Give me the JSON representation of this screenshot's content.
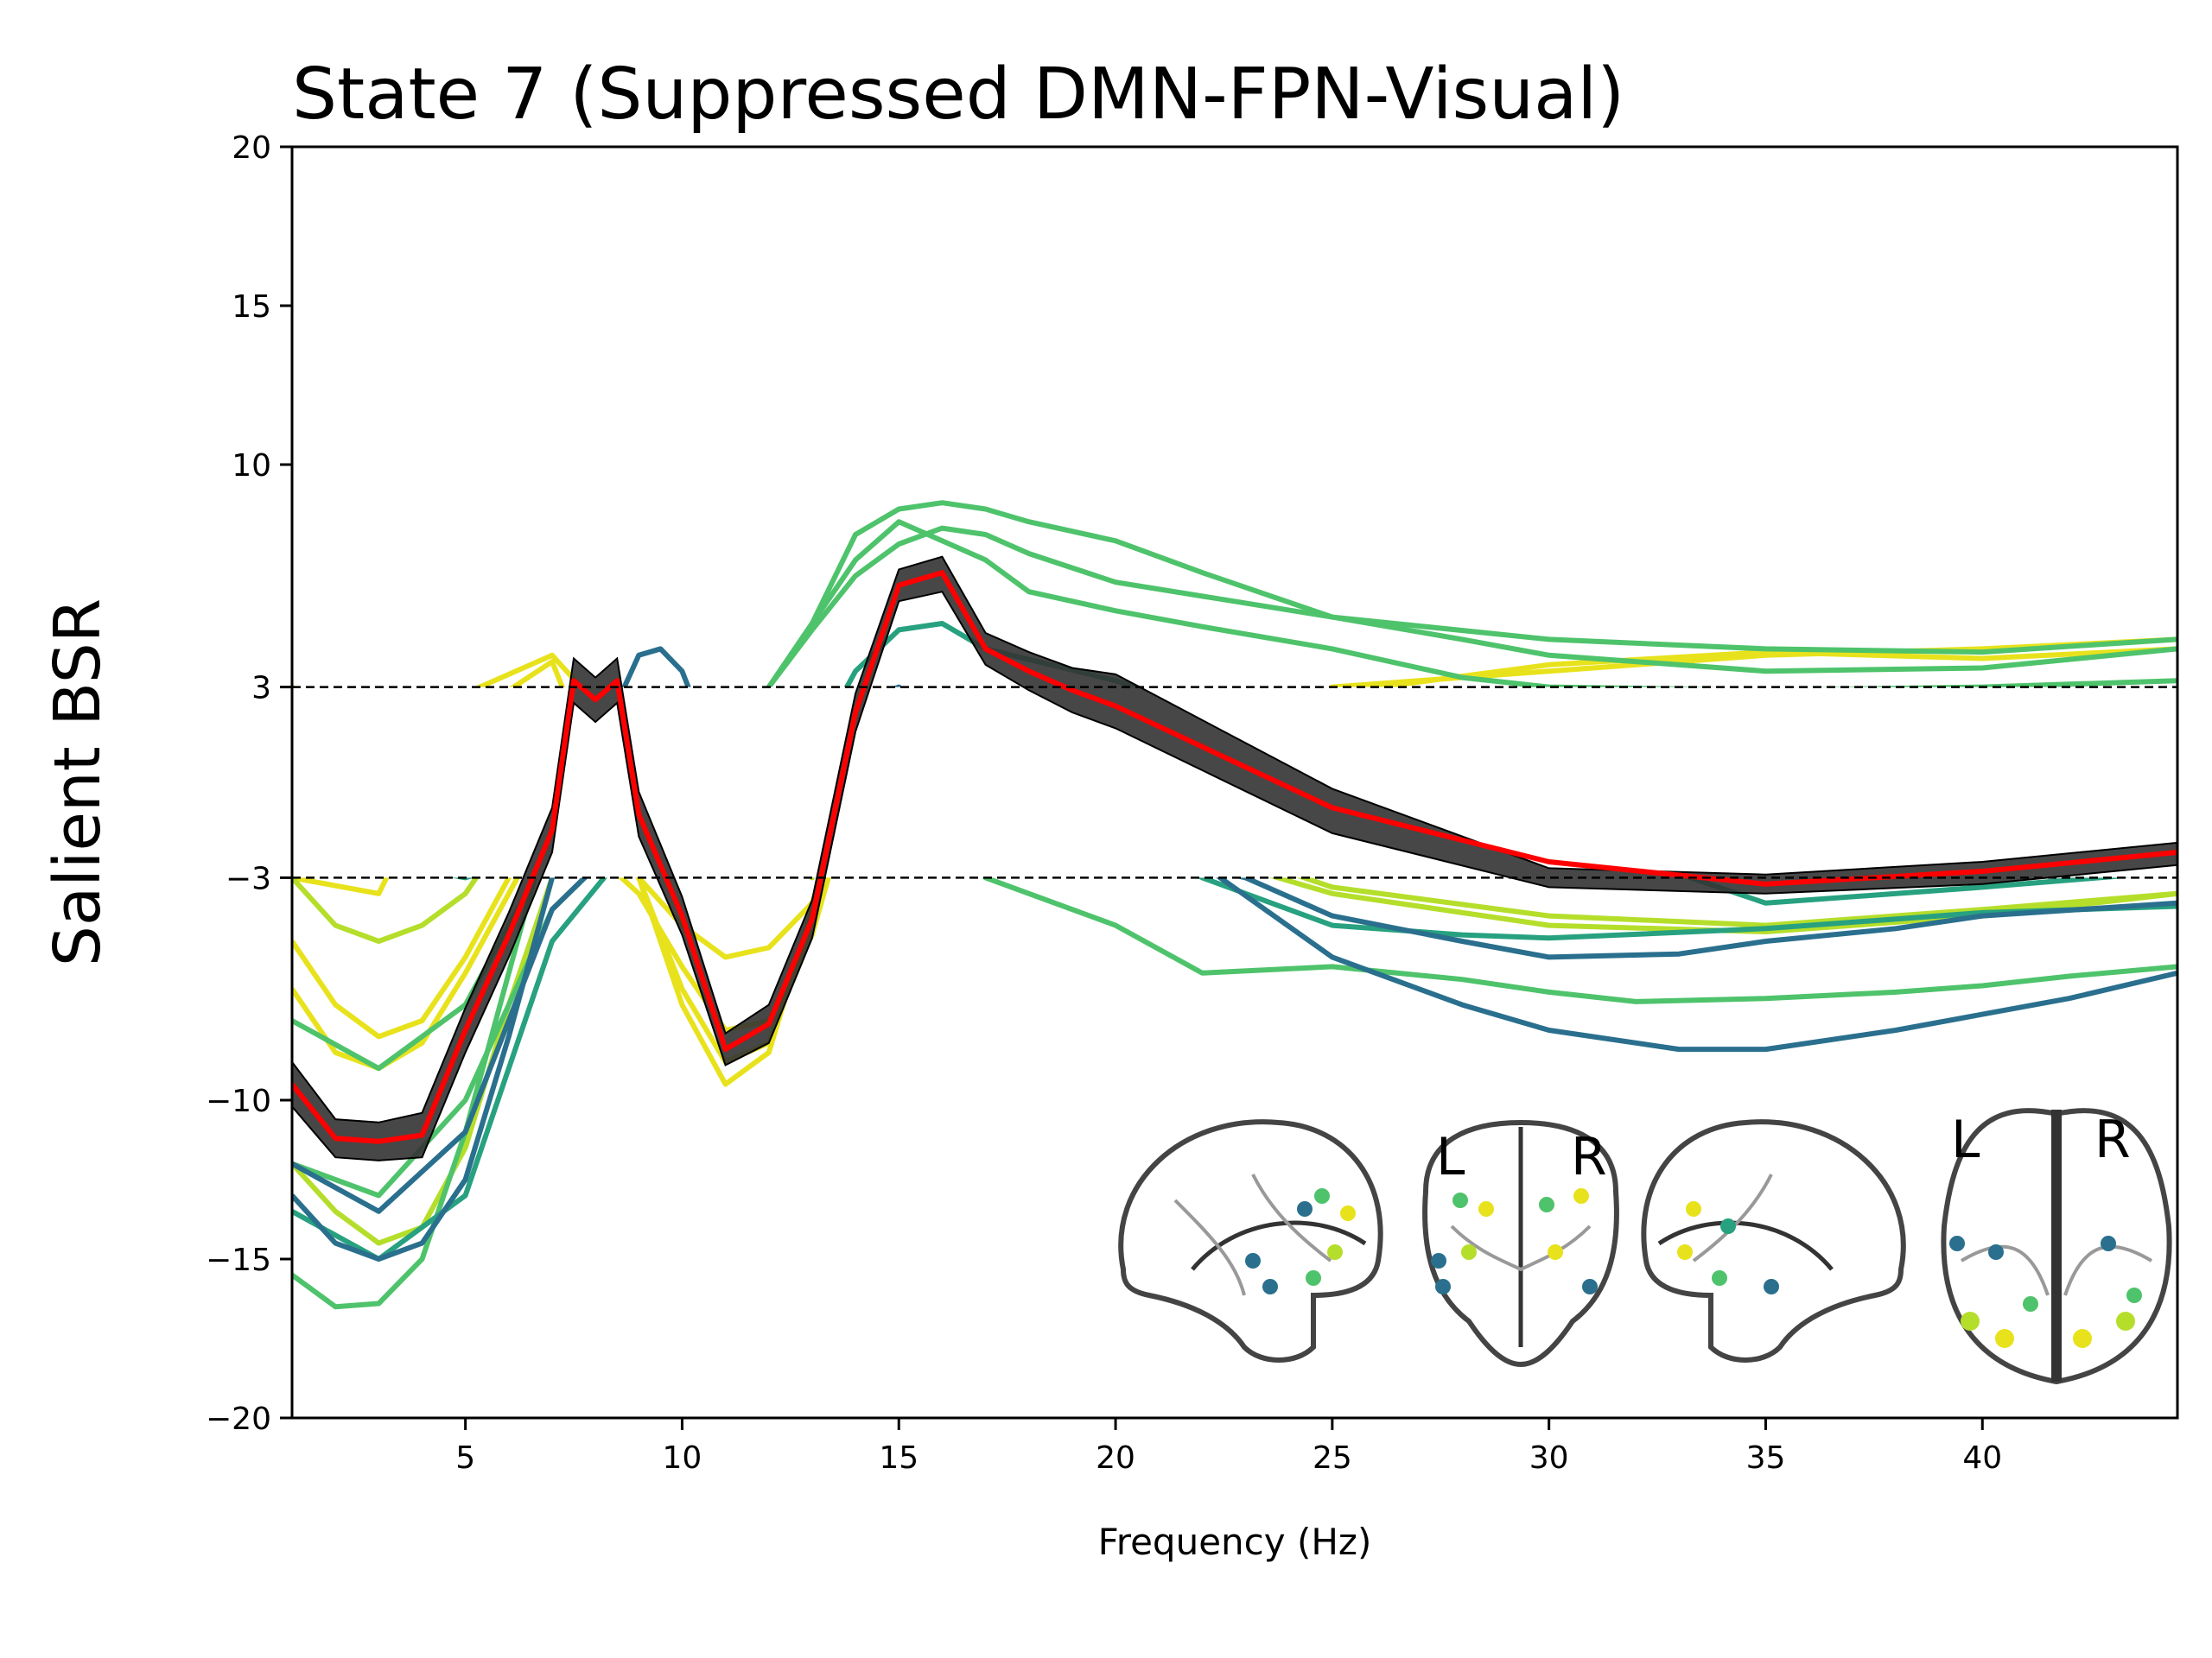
{
  "chart_data": {
    "type": "line",
    "title": "State 7 (Suppressed DMN-FPN-Visual)",
    "xlabel": "Frequency (Hz)",
    "ylabel": "Salient BSR",
    "xlim": [
      1,
      44.5
    ],
    "ylim": [
      -20,
      20
    ],
    "xticks": [
      5,
      10,
      15,
      20,
      25,
      30,
      35,
      40
    ],
    "yticks": [
      -20,
      -15,
      -10,
      -3,
      3,
      10,
      15,
      20
    ],
    "ytick_labels": [
      "−20",
      "−15",
      "−10",
      "−3",
      "3",
      "10",
      "15",
      "20"
    ],
    "threshold": [
      -3,
      3
    ],
    "grid": false,
    "legend": "none",
    "brain_inset_labels": [
      "L",
      "R",
      "L",
      "R"
    ],
    "colors": {
      "mean": "#ff0000",
      "ci": "#333333",
      "yellow": "#e8e21c",
      "yellowgreen": "#b5de2b",
      "green": "#4ec36b",
      "teal": "#27a17f",
      "blue": "#2a6f8e"
    },
    "mean_series": {
      "x": [
        1,
        2,
        3,
        4,
        5,
        6,
        7,
        7.5,
        8,
        8.5,
        9,
        10,
        11,
        12,
        13,
        14,
        15,
        16,
        17,
        18,
        19,
        20,
        25,
        30,
        35,
        40,
        44.5
      ],
      "y": [
        -9.5,
        -11.2,
        -11.3,
        -11.1,
        -7.8,
        -4.8,
        -1.5,
        3.2,
        2.6,
        3.2,
        -1,
        -4.2,
        -8.4,
        -7.6,
        -4.3,
        2.2,
        6.2,
        6.6,
        4.2,
        3.5,
        2.9,
        2.4,
        -0.8,
        -2.5,
        -3.2,
        -2.8,
        -2.2
      ],
      "ci_lower": [
        -10.2,
        -11.8,
        -11.9,
        -11.8,
        -8.5,
        -5.5,
        -2.2,
        2.5,
        1.9,
        2.5,
        -1.7,
        -4.8,
        -8.9,
        -8.2,
        -4.9,
        1.6,
        5.7,
        6.0,
        3.7,
        2.9,
        2.2,
        1.7,
        -1.6,
        -3.3,
        -3.5,
        -3.2,
        -2.6
      ],
      "ci_upper": [
        -8.8,
        -10.6,
        -10.7,
        -10.4,
        -7.1,
        -4.1,
        -0.8,
        3.9,
        3.3,
        3.9,
        -0.3,
        -3.6,
        -7.9,
        -7.0,
        -3.7,
        2.8,
        6.7,
        7.1,
        4.7,
        4.1,
        3.6,
        3.4,
        -0.2,
        -2.7,
        -2.9,
        -2.5,
        -1.9
      ]
    },
    "series": [
      {
        "color_key": "yellow",
        "x": [
          1,
          3,
          5,
          7,
          8,
          9,
          10,
          11,
          12,
          13,
          14,
          16,
          18,
          20,
          25,
          30,
          35,
          40,
          44.5
        ],
        "y": [
          3,
          1,
          2.8,
          4,
          2.5,
          -3,
          -7,
          -9.5,
          -8.5,
          -4,
          1,
          -1,
          -1.5,
          -1.6,
          3,
          3.5,
          4,
          4.2,
          4.5
        ]
      },
      {
        "color_key": "yellow",
        "x": [
          1,
          3,
          5,
          7,
          9,
          10,
          11,
          12,
          13,
          14,
          16,
          20,
          25,
          30,
          35,
          40,
          44.5
        ],
        "y": [
          -3,
          -3.5,
          2,
          3.8,
          -3,
          -6.5,
          -8.8,
          -8.2,
          -4.5,
          0.5,
          -0.5,
          -1,
          2.8,
          3.7,
          4.1,
          3.9,
          4.2
        ]
      },
      {
        "color_key": "yellow",
        "x": [
          1,
          2,
          3,
          4,
          5,
          6,
          7,
          9,
          10,
          11,
          12,
          13,
          14,
          20,
          30,
          40,
          44.5
        ],
        "y": [
          -6.5,
          -8.5,
          -9,
          -8.2,
          -6,
          -3.5,
          -1,
          -3.5,
          -5.8,
          -7.8,
          -7.5,
          -4.8,
          0,
          -1,
          -1.5,
          -2,
          -2.2
        ]
      },
      {
        "color_key": "yellow",
        "x": [
          1,
          2,
          3,
          4,
          5,
          6,
          7,
          9,
          10,
          11,
          12,
          13,
          14,
          20,
          30,
          40,
          44.5
        ],
        "y": [
          -5,
          -7,
          -8,
          -7.5,
          -5.5,
          -3,
          -0.5,
          -3,
          -4.5,
          -5.5,
          -5.2,
          -3.8,
          0,
          -0.5,
          -1,
          -1.5,
          -1.8
        ]
      },
      {
        "color_key": "yellowgreen",
        "x": [
          1,
          2,
          3,
          4,
          5,
          6,
          7,
          10,
          12,
          13,
          14,
          20,
          25,
          30,
          35,
          40,
          44.5
        ],
        "y": [
          -12,
          -13.5,
          -14.5,
          -14,
          -11.5,
          -7,
          -3,
          0,
          -2,
          -3,
          0,
          -1,
          -3.3,
          -4.2,
          -4.5,
          -4,
          -3.5
        ]
      },
      {
        "color_key": "yellowgreen",
        "x": [
          1,
          2,
          3,
          4,
          5,
          6,
          7,
          10,
          13,
          16,
          20,
          25,
          30,
          35,
          40,
          44.5
        ],
        "y": [
          -3,
          -4.5,
          -5,
          -4.5,
          -3.5,
          -1.5,
          0,
          0,
          -1,
          -0.8,
          -1.5,
          -3.5,
          -4.5,
          -4.7,
          -4.2,
          -3.5
        ]
      },
      {
        "color_key": "green",
        "x": [
          1,
          2,
          3,
          4,
          5,
          6,
          7,
          10,
          12,
          13,
          14,
          15,
          16,
          17,
          18,
          20,
          22,
          25,
          28,
          30,
          35,
          40,
          44.5
        ],
        "y": [
          -15.5,
          -16.5,
          -16.4,
          -15,
          -11,
          -6,
          -1,
          0,
          3,
          5,
          7,
          8.2,
          7.6,
          7,
          6,
          5.4,
          4.9,
          4.2,
          3.3,
          3,
          2.9,
          3,
          3.2
        ]
      },
      {
        "color_key": "green",
        "x": [
          1,
          3,
          5,
          7,
          10,
          12,
          13,
          14,
          15,
          16,
          17,
          18,
          20,
          22,
          25,
          28,
          30,
          35,
          40,
          44.5
        ],
        "y": [
          -7.5,
          -9,
          -7,
          -2,
          0,
          3,
          5,
          7.8,
          8.6,
          8.8,
          8.6,
          8.2,
          7.6,
          6.6,
          5.2,
          4.5,
          4,
          3.5,
          3.6,
          4.2
        ]
      },
      {
        "color_key": "green",
        "x": [
          1,
          3,
          5,
          7,
          10,
          12,
          13,
          14,
          15,
          16,
          17,
          18,
          20,
          25,
          30,
          35,
          40,
          44.5
        ],
        "y": [
          -12,
          -13,
          -10,
          -4,
          0,
          3,
          4.8,
          6.5,
          7.5,
          8,
          7.8,
          7.2,
          6.3,
          5.2,
          4.5,
          4.2,
          4.1,
          4.5
        ]
      },
      {
        "color_key": "green",
        "x": [
          1,
          5,
          10,
          15,
          16,
          17,
          20,
          22,
          25,
          28,
          30,
          32,
          35,
          38,
          40,
          42,
          44.5
        ],
        "y": [
          -1,
          -2,
          -1.5,
          -0.5,
          -1.5,
          -3,
          -4.5,
          -6,
          -5.8,
          -6.2,
          -6.6,
          -6.9,
          -6.8,
          -6.6,
          -6.4,
          -6.1,
          -5.8
        ]
      },
      {
        "color_key": "teal",
        "x": [
          1,
          3,
          5,
          7,
          10,
          13,
          14,
          15,
          16,
          17,
          20,
          25,
          30,
          35,
          40,
          44.5
        ],
        "y": [
          -13.5,
          -15,
          -13,
          -5,
          0,
          1,
          3.5,
          4.8,
          5,
          4.2,
          3.2,
          1,
          -1.5,
          -3.8,
          -3.3,
          -2.8
        ]
      },
      {
        "color_key": "teal",
        "x": [
          1,
          5,
          10,
          15,
          20,
          22,
          25,
          28,
          30,
          35,
          40,
          44.5
        ],
        "y": [
          -2,
          -3,
          -1,
          -0.5,
          -1.5,
          -3,
          -4.5,
          -4.8,
          -4.9,
          -4.6,
          -4.1,
          -3.9
        ]
      },
      {
        "color_key": "blue",
        "x": [
          1,
          2,
          3,
          4,
          5,
          6,
          7,
          8,
          9,
          9.5,
          10,
          11,
          12,
          14,
          15,
          16,
          20,
          22,
          25,
          28,
          30,
          33,
          35,
          38,
          40,
          42,
          44.5
        ],
        "y": [
          -13,
          -14.5,
          -15,
          -14.5,
          -12.5,
          -8,
          -3,
          1,
          4,
          4.2,
          3.5,
          0,
          -1,
          2.5,
          3,
          1.5,
          -1,
          -2.6,
          -5.5,
          -7,
          -7.8,
          -8.4,
          -8.4,
          -7.8,
          -7.3,
          -6.8,
          -6
        ]
      },
      {
        "color_key": "blue",
        "x": [
          1,
          3,
          5,
          7,
          10,
          15,
          20,
          23,
          25,
          28,
          30,
          33,
          35,
          38,
          40,
          44.5
        ],
        "y": [
          -12,
          -13.5,
          -11,
          -4,
          0,
          -1,
          -2,
          -3,
          -4.2,
          -5,
          -5.5,
          -5.4,
          -5,
          -4.6,
          -4.2,
          -3.8
        ]
      }
    ]
  }
}
